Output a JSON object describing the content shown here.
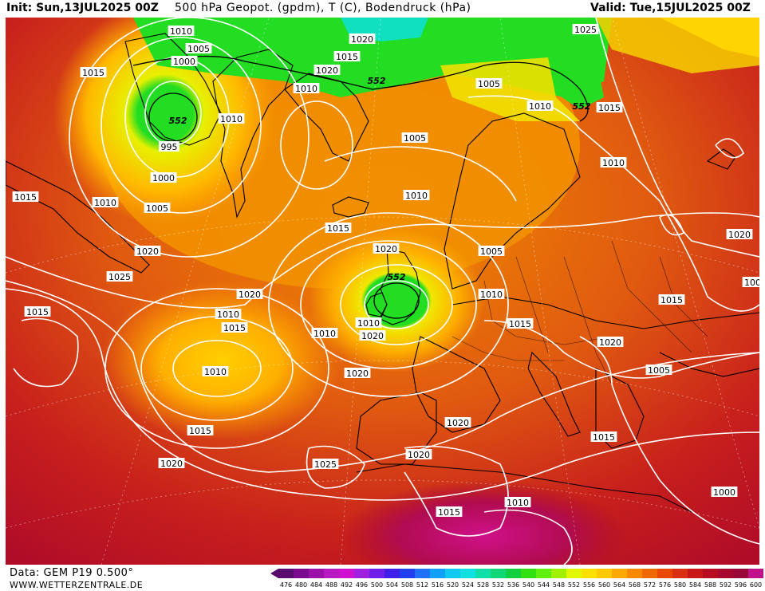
{
  "header": {
    "init": "Init: Sun,13JUL2025 00Z",
    "title": "500 hPa Geopot. (gpdm), T (C), Bodendruck (hPa)",
    "valid": "Valid: Tue,15JUL2025 00Z"
  },
  "footer": {
    "model": "Data: GEM P19 0.500°",
    "site": "WWW.WETTERZENTRALE.DE"
  },
  "colors": {
    "low": "#22dd22",
    "high": "#d81e1e",
    "isobar": "#ffffff",
    "coast": "#000000"
  },
  "legend": {
    "values": [
      "476",
      "480",
      "484",
      "488",
      "492",
      "496",
      "500",
      "504",
      "508",
      "512",
      "516",
      "520",
      "524",
      "528",
      "532",
      "536",
      "540",
      "544",
      "548",
      "552",
      "556",
      "560",
      "564",
      "568",
      "572",
      "576",
      "580",
      "584",
      "588",
      "592",
      "596",
      "600"
    ],
    "colors": [
      "#5a0a6e",
      "#7a0a8e",
      "#9a10a8",
      "#b818c0",
      "#d010d0",
      "#a020e0",
      "#7020e8",
      "#4020e8",
      "#2040f0",
      "#2070f8",
      "#10a0f8",
      "#10c8f0",
      "#10e0e0",
      "#10e0a8",
      "#10d878",
      "#10d040",
      "#30e010",
      "#60f010",
      "#a0f000",
      "#e0f800",
      "#ffe000",
      "#ffc800",
      "#ffa800",
      "#f88800",
      "#f06800",
      "#e84800",
      "#d83010",
      "#c81818",
      "#b80c20",
      "#a80830",
      "#980838",
      "#c0108a"
    ]
  },
  "map": {
    "contour_label": "552",
    "isobar_labels": [
      "1010",
      "1005",
      "1000",
      "1015",
      "995",
      "1000",
      "1005",
      "1010",
      "1015",
      "1020",
      "1025",
      "1015",
      "1010",
      "1020",
      "1015",
      "1010",
      "1005",
      "1010",
      "1020",
      "1015",
      "1020",
      "1025",
      "1005",
      "1010",
      "1015",
      "1010",
      "1020",
      "1005",
      "1010",
      "1015",
      "1015",
      "1020",
      "1005",
      "1010",
      "1020",
      "1015",
      "1010",
      "1010",
      "1020",
      "1020",
      "1015",
      "1020",
      "1020",
      "1025",
      "1020",
      "1015",
      "1010",
      "1015",
      "1000",
      "1005",
      "1010",
      "552",
      "552",
      "552",
      "552"
    ]
  }
}
